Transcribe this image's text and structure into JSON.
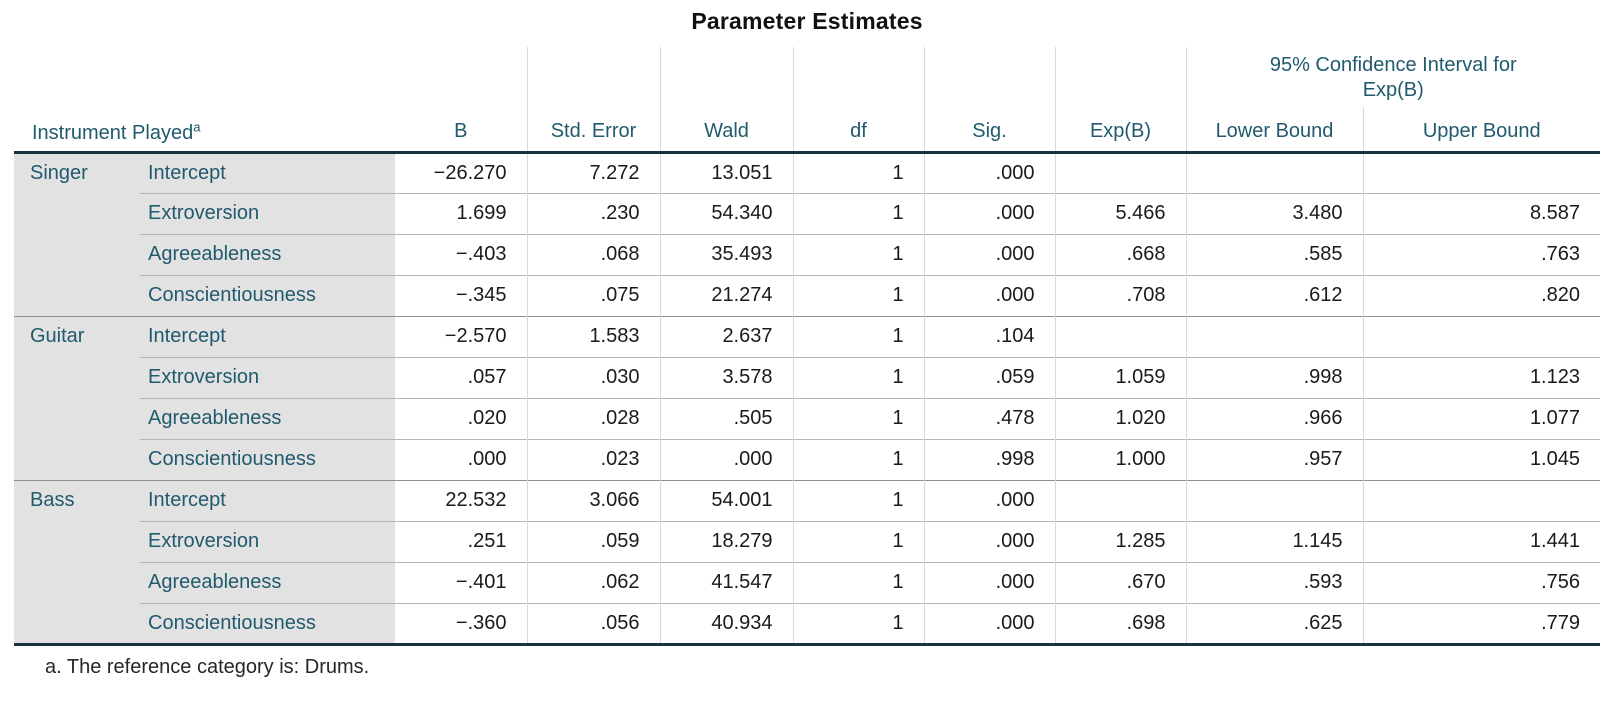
{
  "title": "Parameter Estimates",
  "chart_data": {
    "type": "table",
    "title": "Parameter Estimates",
    "row_dimension": "Instrument Played",
    "row_dimension_footnote_marker": "a",
    "column_headers": [
      "B",
      "Std. Error",
      "Wald",
      "df",
      "Sig.",
      "Exp(B)"
    ],
    "ci_group_header_lines": [
      "95% Confidence Interval for",
      "Exp(B)"
    ],
    "ci_columns": [
      "Lower Bound",
      "Upper Bound"
    ],
    "groups": [
      {
        "instrument": "Singer",
        "rows": [
          {
            "predictor": "Intercept",
            "values": [
              "−26.270",
              "7.272",
              "13.051",
              "1",
              ".000",
              "",
              "",
              ""
            ]
          },
          {
            "predictor": "Extroversion",
            "values": [
              "1.699",
              ".230",
              "54.340",
              "1",
              ".000",
              "5.466",
              "3.480",
              "8.587"
            ]
          },
          {
            "predictor": "Agreeableness",
            "values": [
              "−.403",
              ".068",
              "35.493",
              "1",
              ".000",
              ".668",
              ".585",
              ".763"
            ]
          },
          {
            "predictor": "Conscientiousness",
            "values": [
              "−.345",
              ".075",
              "21.274",
              "1",
              ".000",
              ".708",
              ".612",
              ".820"
            ]
          }
        ]
      },
      {
        "instrument": "Guitar",
        "rows": [
          {
            "predictor": "Intercept",
            "values": [
              "−2.570",
              "1.583",
              "2.637",
              "1",
              ".104",
              "",
              "",
              ""
            ]
          },
          {
            "predictor": "Extroversion",
            "values": [
              ".057",
              ".030",
              "3.578",
              "1",
              ".059",
              "1.059",
              ".998",
              "1.123"
            ]
          },
          {
            "predictor": "Agreeableness",
            "values": [
              ".020",
              ".028",
              ".505",
              "1",
              ".478",
              "1.020",
              ".966",
              "1.077"
            ]
          },
          {
            "predictor": "Conscientiousness",
            "values": [
              ".000",
              ".023",
              ".000",
              "1",
              ".998",
              "1.000",
              ".957",
              "1.045"
            ]
          }
        ]
      },
      {
        "instrument": "Bass",
        "rows": [
          {
            "predictor": "Intercept",
            "values": [
              "22.532",
              "3.066",
              "54.001",
              "1",
              ".000",
              "",
              "",
              ""
            ]
          },
          {
            "predictor": "Extroversion",
            "values": [
              ".251",
              ".059",
              "18.279",
              "1",
              ".000",
              "1.285",
              "1.145",
              "1.441"
            ]
          },
          {
            "predictor": "Agreeableness",
            "values": [
              "−.401",
              ".062",
              "41.547",
              "1",
              ".000",
              ".670",
              ".593",
              ".756"
            ]
          },
          {
            "predictor": "Conscientiousness",
            "values": [
              "−.360",
              ".056",
              "40.934",
              "1",
              ".000",
              ".698",
              ".625",
              ".779"
            ]
          }
        ]
      }
    ],
    "footnote": "a. The reference category is: Drums."
  },
  "colors": {
    "header_text": "#215a6e",
    "label_background": "#e2e2e2",
    "heavy_rule": "#17333f",
    "group_rule": "#909090",
    "row_rule": "#b5b5b5",
    "column_rule": "#d9d9d9",
    "data_text": "#1a1a1a"
  }
}
